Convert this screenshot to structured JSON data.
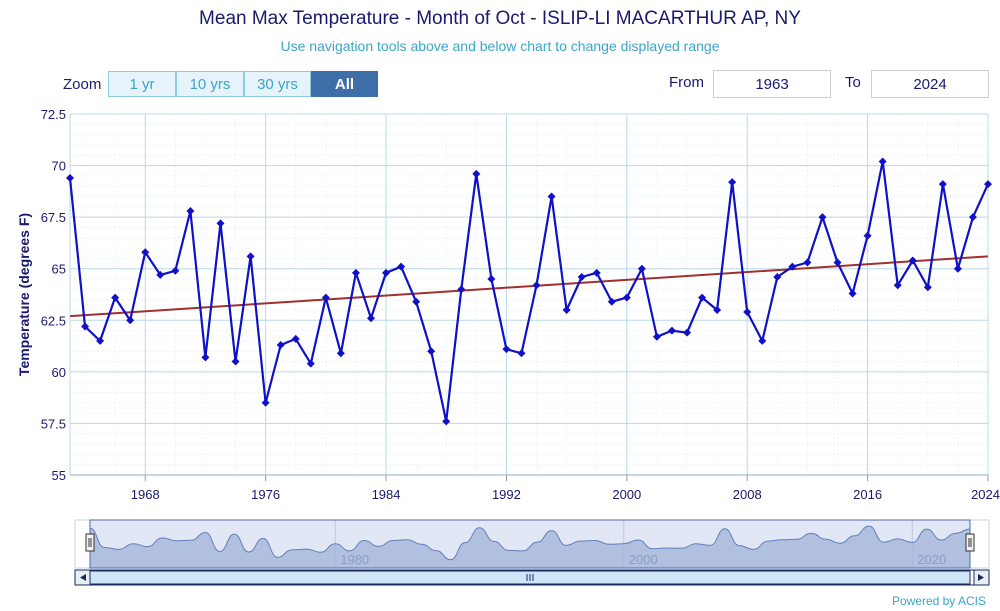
{
  "header": {
    "title": "Mean Max Temperature - Month of Oct - ISLIP-LI MACARTHUR AP, NY",
    "subtitle": "Use navigation tools above and below chart to change displayed range"
  },
  "zoom": {
    "label": "Zoom",
    "buttons": [
      "1 yr",
      "10 yrs",
      "30 yrs",
      "All"
    ],
    "active": "All"
  },
  "range": {
    "from_label": "From",
    "from_value": "1963",
    "to_label": "To",
    "to_value": "2024"
  },
  "footer": {
    "credit": "Powered by ACIS"
  },
  "colors": {
    "series": "#1010c8",
    "trend": "#a03030",
    "grid": "#b9dbe9",
    "navigator_fill": "#9fb0d6",
    "navigator_line": "#3d5fa8"
  },
  "chart_data": {
    "type": "line",
    "title": "Mean Max Temperature - Month of Oct - ISLIP-LI MACARTHUR AP, NY",
    "xlabel": "",
    "ylabel": "Temperature (degrees F)",
    "ylim": [
      55,
      72.5
    ],
    "xlim": [
      1963,
      2024
    ],
    "yticks": [
      "72.5",
      "70",
      "67.5",
      "65",
      "62.5",
      "60",
      "57.5",
      "55"
    ],
    "xticks": [
      "1968",
      "1976",
      "1984",
      "1992",
      "2000",
      "2008",
      "2016",
      "2024"
    ],
    "navigator_ticks": [
      "1980",
      "2000",
      "2020"
    ],
    "grid": true,
    "x": [
      1963,
      1964,
      1965,
      1966,
      1967,
      1968,
      1969,
      1970,
      1971,
      1972,
      1973,
      1974,
      1975,
      1976,
      1977,
      1978,
      1979,
      1980,
      1981,
      1982,
      1983,
      1984,
      1985,
      1986,
      1987,
      1988,
      1989,
      1990,
      1991,
      1992,
      1993,
      1994,
      1995,
      1996,
      1997,
      1998,
      1999,
      2000,
      2001,
      2002,
      2003,
      2004,
      2005,
      2006,
      2007,
      2008,
      2009,
      2010,
      2011,
      2012,
      2013,
      2014,
      2015,
      2016,
      2017,
      2018,
      2019,
      2020,
      2021,
      2022,
      2023,
      2024
    ],
    "series": [
      {
        "values": [
          69.4,
          62.2,
          61.5,
          63.6,
          62.5,
          65.8,
          64.7,
          64.9,
          67.8,
          60.7,
          67.2,
          60.5,
          65.6,
          58.5,
          61.3,
          61.6,
          60.4,
          63.6,
          60.9,
          64.8,
          62.6,
          64.8,
          65.1,
          63.4,
          61.0,
          57.6,
          64.0,
          69.6,
          64.5,
          61.1,
          60.9,
          64.2,
          68.5,
          63.0,
          64.6,
          64.8,
          63.4,
          63.6,
          65.0,
          61.7,
          62.0,
          61.9,
          63.6,
          63.0,
          69.2,
          62.9,
          61.5,
          64.6,
          65.1,
          65.3,
          67.5,
          65.3,
          63.8,
          66.6,
          70.2,
          64.2,
          65.4,
          64.1,
          69.1,
          65.0,
          67.5,
          69.1
        ]
      },
      {
        "trend": true,
        "values": [
          62.7,
          65.6
        ],
        "x": [
          1963,
          2024
        ]
      }
    ]
  }
}
